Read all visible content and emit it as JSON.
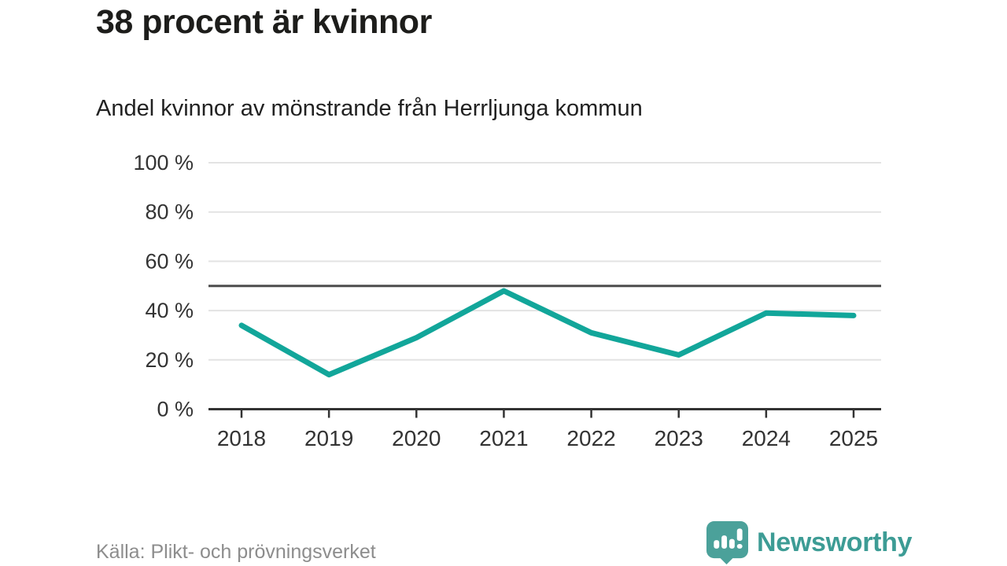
{
  "header": {
    "title": "38 procent är kvinnor",
    "subtitle": "Andel kvinnor av mönstrande från Herrljunga kommun"
  },
  "chart_data": {
    "type": "line",
    "title": "38 procent är kvinnor",
    "subtitle": "Andel kvinnor av mönstrande från Herrljunga kommun",
    "x": [
      "2018",
      "2019",
      "2020",
      "2021",
      "2022",
      "2023",
      "2024",
      "2025"
    ],
    "series": [
      {
        "name": "Andel kvinnor",
        "values": [
          34,
          14,
          29,
          48,
          31,
          22,
          39,
          38
        ]
      }
    ],
    "unit": "%",
    "ylim": [
      0,
      100
    ],
    "yticks": [
      0,
      20,
      40,
      60,
      80,
      100
    ],
    "ytick_labels": [
      "0 %",
      "20 %",
      "40 %",
      "60 %",
      "80 %",
      "100 %"
    ],
    "reference_line": 50,
    "grid": true,
    "legend": "none",
    "line_color": "#12a69a",
    "grid_color": "#e3e3e3",
    "axis_color": "#333333",
    "reference_color": "#4d4d4d",
    "tick_label_color": "#333333"
  },
  "footer": {
    "source": "Källa: Plikt- och prövningsverket",
    "brand": "Newsworthy",
    "brand_color": "#3d9c95",
    "icon_color": "#4ba19a"
  }
}
